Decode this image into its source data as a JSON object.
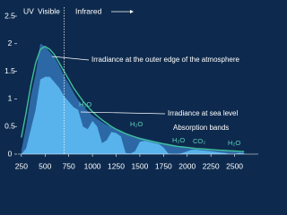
{
  "chart_data": {
    "type": "area",
    "annotations": {
      "uv": "UV",
      "visible": "Visible",
      "infrared": "Infrared",
      "outer": "Irradiance at the outer edge of the atmosphere",
      "sea": "Irradiance at sea level",
      "bands": "Absorption bands",
      "h2o_1": "H₂O",
      "h2o_2": "H₂O",
      "h2o_3": "H₂O",
      "co2": "CO₂",
      "h2o_4": "H₂O"
    },
    "x": [
      250,
      300,
      350,
      400,
      450,
      500,
      550,
      600,
      650,
      700,
      750,
      800,
      850,
      900,
      950,
      1000,
      1050,
      1100,
      1150,
      1200,
      1250,
      1300,
      1350,
      1400,
      1450,
      1500,
      1550,
      1600,
      1650,
      1700,
      1750,
      1800,
      1850,
      1900,
      1950,
      2000,
      2050,
      2100,
      2150,
      2200,
      2250,
      2300,
      2350,
      2400,
      2450,
      2500,
      2550,
      2600
    ],
    "series": [
      {
        "name": "Irradiance at the outer edge of the atmosphere",
        "color": "#2d68a6",
        "values": [
          0.06,
          0.5,
          1.05,
          1.45,
          2.0,
          1.95,
          1.85,
          1.75,
          1.6,
          1.42,
          1.28,
          1.12,
          0.98,
          0.88,
          0.78,
          0.7,
          0.64,
          0.58,
          0.53,
          0.49,
          0.45,
          0.41,
          0.38,
          0.35,
          0.32,
          0.3,
          0.28,
          0.26,
          0.24,
          0.22,
          0.2,
          0.18,
          0.16,
          0.14,
          0.13,
          0.12,
          0.11,
          0.1,
          0.09,
          0.085,
          0.08,
          0.075,
          0.07,
          0.065,
          0.06,
          0.055,
          0.05,
          0.045
        ]
      },
      {
        "name": "Irradiance at sea level",
        "color": "#58b3ec",
        "values": [
          0,
          0.1,
          0.45,
          0.8,
          1.35,
          1.4,
          1.4,
          1.3,
          1.2,
          1.05,
          0.95,
          0.85,
          0.8,
          0.5,
          0.45,
          0.6,
          0.5,
          0.2,
          0.25,
          0.4,
          0.38,
          0.32,
          0.02,
          0.01,
          0.05,
          0.22,
          0.24,
          0.22,
          0.2,
          0.18,
          0.12,
          0.01,
          0,
          0,
          0.02,
          0.05,
          0.08,
          0.08,
          0.07,
          0.06,
          0.05,
          0.04,
          0.03,
          0.02,
          0,
          0,
          0.02,
          0.01
        ]
      },
      {
        "color": "#3fc09a",
        "line": true,
        "values": [
          0.3,
          0.75,
          1.25,
          1.65,
          1.9,
          1.95,
          1.9,
          1.8,
          1.65,
          1.5,
          1.35,
          1.2,
          1.08,
          0.96,
          0.86,
          0.77,
          0.69,
          0.62,
          0.56,
          0.5,
          0.45,
          0.41,
          0.37,
          0.34,
          0.31,
          0.28,
          0.26,
          0.24,
          0.22,
          0.2,
          0.185,
          0.17,
          0.155,
          0.14,
          0.13,
          0.12,
          0.11,
          0.1,
          0.095,
          0.09,
          0.082,
          0.076,
          0.07,
          0.065,
          0.06,
          0.055,
          0.05,
          0.046
        ]
      }
    ],
    "vline": 700,
    "xlim": [
      100,
      2750
    ],
    "ylim": [
      0,
      2.5
    ],
    "xticks": [
      250,
      500,
      750,
      1000,
      1250,
      1500,
      1750,
      2000,
      2250,
      2500
    ],
    "yticks": [
      0,
      0.5,
      1,
      1.5,
      2,
      2.5
    ]
  }
}
